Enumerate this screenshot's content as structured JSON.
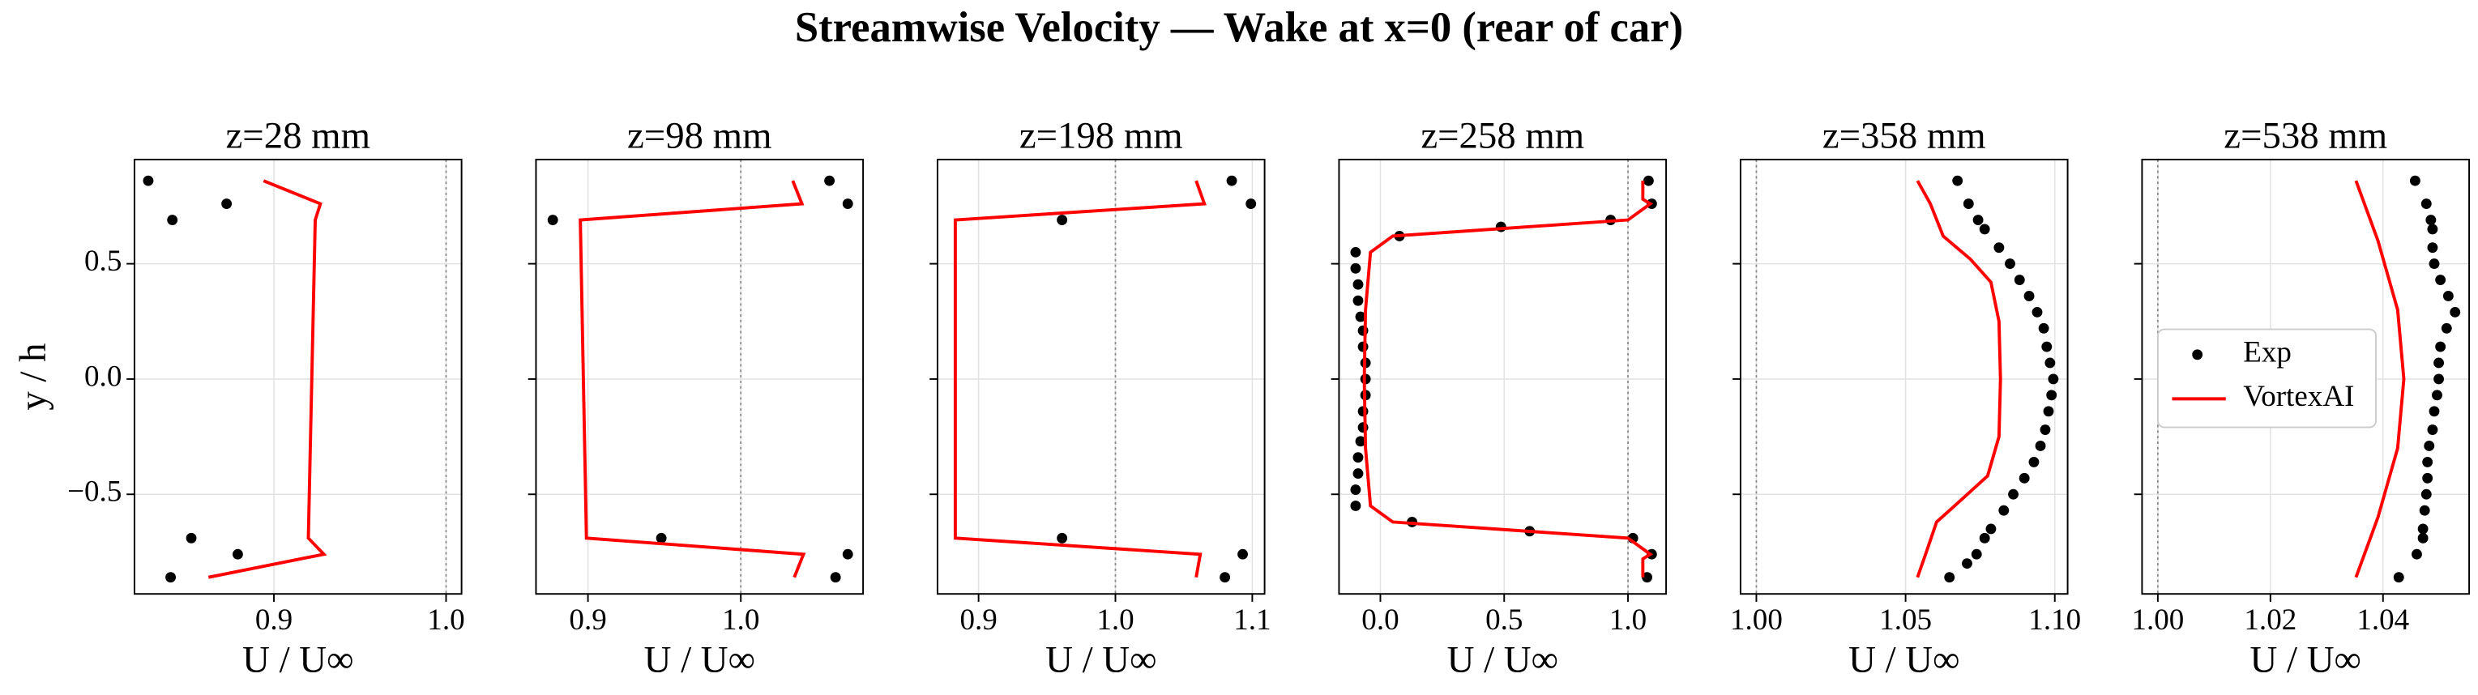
{
  "title": "Streamwise Velocity — Wake at x=0 (rear of car)",
  "chart_data": [
    {
      "type": "line",
      "title": "z=28 mm",
      "xlabel": "U / U∞",
      "ylabel": "y / h",
      "xlim": [
        0.819,
        1.009
      ],
      "xticks": [
        0.9,
        {
          "value": 1,
          "label": "1.0"
        }
      ],
      "ylim": [
        -0.932,
        0.952
      ],
      "yticks": [
        {
          "value": -0.5,
          "label": "−0.5"
        },
        {
          "value": 0,
          "label": "0.0"
        },
        0.5
      ],
      "grid": true,
      "vline": 1,
      "series": [
        {
          "mode": "markers",
          "color": "#000000",
          "x": [
            0.827,
            0.841,
            0.8725,
            0.852,
            0.879,
            0.84
          ],
          "values": [
            0.86,
            0.69,
            0.76,
            -0.69,
            -0.76,
            -0.86
          ]
        },
        {
          "mode": "lines",
          "color": "#ff0000",
          "x": [
            0.894,
            0.927,
            0.924,
            0.92,
            0.929,
            0.862
          ],
          "values": [
            0.86,
            0.76,
            0.69,
            -0.69,
            -0.76,
            -0.86
          ]
        }
      ]
    },
    {
      "type": "line",
      "title": "z=98 mm",
      "xlabel": "U / U∞",
      "xlim": [
        0.866,
        1.08
      ],
      "xticks": [
        0.9,
        {
          "value": 1,
          "label": "1.0"
        }
      ],
      "grid": true,
      "vline": 1,
      "series": [
        {
          "mode": "markers",
          "color": "#000000",
          "x": [
            0.877,
            1.058,
            1.07,
            0.948,
            1.07,
            1.062
          ],
          "values": [
            0.69,
            0.86,
            0.76,
            -0.69,
            -0.76,
            -0.86
          ]
        },
        {
          "mode": "lines",
          "color": "#ff0000",
          "x": [
            1.034,
            1.04,
            0.895,
            0.899,
            1.041,
            1.035
          ],
          "values": [
            0.86,
            0.76,
            0.69,
            -0.69,
            -0.76,
            -0.86
          ]
        }
      ]
    },
    {
      "type": "line",
      "title": "z=198 mm",
      "xlabel": "U / U∞",
      "xlim": [
        0.87,
        1.109
      ],
      "xticks": [
        0.9,
        {
          "value": 1,
          "label": "1.0"
        },
        1.1
      ],
      "grid": true,
      "vline": 1,
      "series": [
        {
          "mode": "markers",
          "color": "#000000",
          "x": [
            0.961,
            1.085,
            1.099,
            0.961,
            1.093,
            1.08
          ],
          "values": [
            0.69,
            0.86,
            0.76,
            -0.69,
            -0.76,
            -0.86
          ]
        },
        {
          "mode": "lines",
          "color": "#ff0000",
          "x": [
            1.059,
            1.065,
            0.883,
            0.883,
            1.062,
            1.059
          ],
          "values": [
            0.86,
            0.76,
            0.69,
            -0.69,
            -0.76,
            -0.86
          ]
        }
      ]
    },
    {
      "type": "line",
      "title": "z=258 mm",
      "xlabel": "U / U∞",
      "xlim": [
        -0.167,
        1.154
      ],
      "xticks": [
        {
          "value": 0,
          "label": "0.0"
        },
        0.5,
        {
          "value": 1,
          "label": "1.0"
        }
      ],
      "grid": true,
      "vline": 1,
      "series": [
        {
          "mode": "markers",
          "color": "#000000",
          "x": [
            1.083,
            1.096,
            0.93,
            0.487,
            0.077,
            -0.1,
            -0.1,
            -0.09,
            -0.09,
            -0.08,
            -0.07,
            -0.07,
            -0.06,
            -0.06,
            -0.06,
            -0.07,
            -0.07,
            -0.08,
            -0.09,
            -0.09,
            -0.1,
            -0.1,
            0.128,
            0.603,
            1.02,
            1.096,
            1.077
          ],
          "values": [
            0.86,
            0.76,
            0.69,
            0.66,
            0.62,
            0.55,
            0.48,
            0.41,
            0.34,
            0.27,
            0.21,
            0.14,
            0.07,
            0,
            -0.07,
            -0.14,
            -0.21,
            -0.27,
            -0.34,
            -0.41,
            -0.48,
            -0.55,
            -0.62,
            -0.66,
            -0.69,
            -0.76,
            -0.86
          ]
        },
        {
          "mode": "lines",
          "color": "#ff0000",
          "x": [
            1.06,
            1.06,
            1.09,
            1.0,
            0.05,
            -0.04,
            -0.06,
            -0.065,
            -0.06,
            -0.04,
            0.05,
            1.0,
            1.09,
            1.06,
            1.06
          ],
          "values": [
            0.86,
            0.78,
            0.76,
            0.69,
            0.62,
            0.55,
            0.3,
            0,
            -0.3,
            -0.55,
            -0.62,
            -0.69,
            -0.76,
            -0.78,
            -0.86
          ]
        }
      ]
    },
    {
      "type": "line",
      "title": "z=358 mm",
      "xlabel": "U / U∞",
      "xlim": [
        0.9947,
        1.1043
      ],
      "xticks": [
        {
          "value": 1,
          "label": "1.00"
        },
        1.05,
        {
          "value": 1.1,
          "label": "1.10"
        }
      ],
      "grid": true,
      "vline": 1,
      "series": [
        {
          "mode": "markers",
          "color": "#000000",
          "x": [
            1.0674,
            1.0711,
            1.0743,
            1.0765,
            1.0813,
            1.085,
            1.0882,
            1.0914,
            1.0941,
            1.0963,
            1.0973,
            1.0984,
            1.0995,
            1.0989,
            1.0979,
            1.0968,
            1.0952,
            1.093,
            1.0898,
            1.0861,
            1.0829,
            1.0786,
            1.0765,
            1.0738,
            1.0706,
            1.0647
          ],
          "values": [
            0.86,
            0.76,
            0.69,
            0.65,
            0.57,
            0.5,
            0.43,
            0.36,
            0.29,
            0.22,
            0.14,
            0.07,
            0,
            -0.07,
            -0.14,
            -0.22,
            -0.29,
            -0.36,
            -0.43,
            -0.5,
            -0.57,
            -0.65,
            -0.69,
            -0.76,
            -0.8,
            -0.86
          ]
        },
        {
          "mode": "lines",
          "color": "#ff0000",
          "x": [
            1.054,
            1.0583,
            1.0626,
            1.0717,
            1.0786,
            1.0813,
            1.0818,
            1.0813,
            1.0775,
            1.069,
            1.0604,
            1.0567,
            1.054
          ],
          "values": [
            0.86,
            0.76,
            0.62,
            0.52,
            0.42,
            0.25,
            0,
            -0.25,
            -0.42,
            -0.52,
            -0.62,
            -0.76,
            -0.86
          ]
        }
      ]
    },
    {
      "type": "line",
      "title": "z=538 mm",
      "xlabel": "U / U∞",
      "xlim": [
        0.9972,
        1.0553
      ],
      "xticks": [
        {
          "value": 1,
          "label": "1.00"
        },
        1.02,
        1.04
      ],
      "grid": true,
      "vline": 1,
      "legend": "center left",
      "series": [
        {
          "name": "Exp",
          "mode": "markers",
          "color": "#000000",
          "x": [
            1.0457,
            1.0477,
            1.0485,
            1.0488,
            1.0488,
            1.0491,
            1.0502,
            1.0516,
            1.0528,
            1.0513,
            1.0502,
            1.0499,
            1.0499,
            1.0496,
            1.0491,
            1.0488,
            1.0482,
            1.0479,
            1.0479,
            1.0477,
            1.0474,
            1.0471,
            1.0471,
            1.046,
            1.0428
          ],
          "values": [
            0.86,
            0.76,
            0.69,
            0.65,
            0.57,
            0.5,
            0.43,
            0.36,
            0.29,
            0.22,
            0.14,
            0.07,
            0,
            -0.07,
            -0.14,
            -0.22,
            -0.29,
            -0.36,
            -0.43,
            -0.5,
            -0.57,
            -0.65,
            -0.69,
            -0.76,
            -0.86
          ]
        },
        {
          "name": "VortexAI",
          "mode": "lines",
          "color": "#ff0000",
          "x": [
            1.0352,
            1.0391,
            1.0426,
            1.0437,
            1.0426,
            1.0391,
            1.0352
          ],
          "values": [
            0.86,
            0.6,
            0.3,
            0,
            -0.3,
            -0.6,
            -0.86
          ]
        }
      ]
    }
  ]
}
